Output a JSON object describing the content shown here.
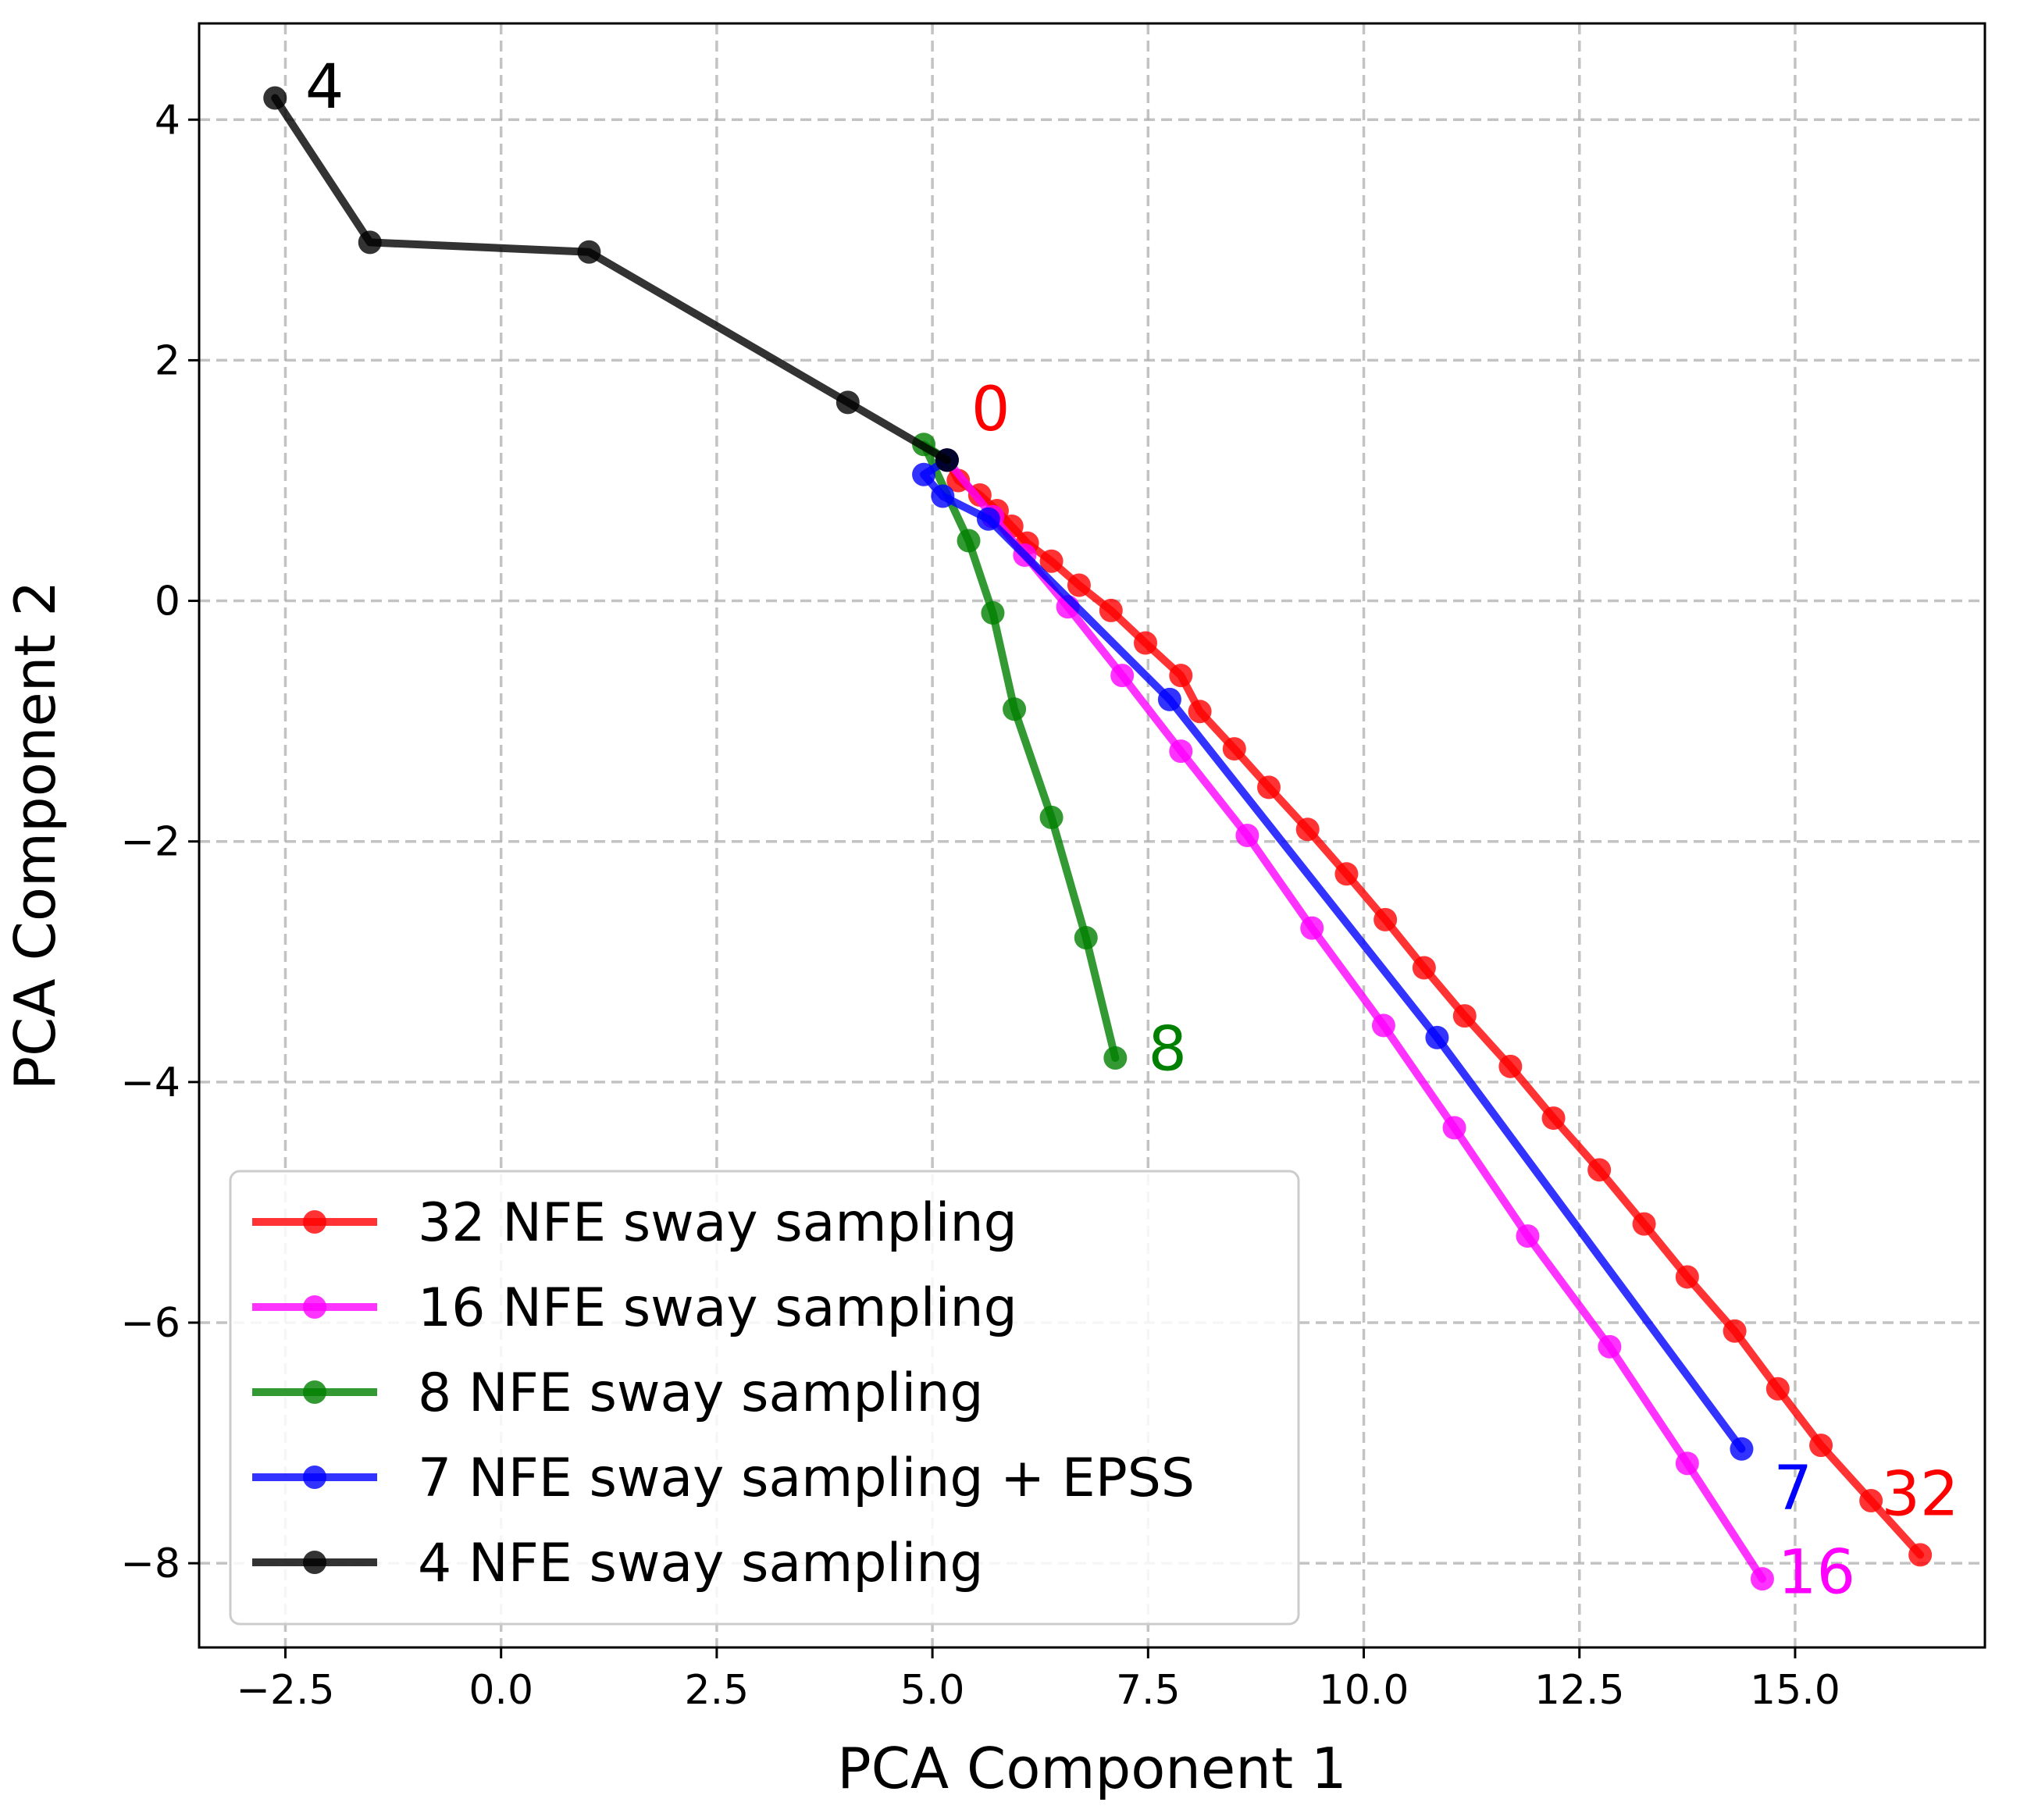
{
  "chart_data": {
    "type": "line",
    "title": "",
    "xlabel": "PCA Component 1",
    "ylabel": "PCA Component 2",
    "xlim": [
      -3.5,
      17.2
    ],
    "ylim": [
      -8.7,
      4.8
    ],
    "xticks": [
      -2.5,
      0.0,
      2.5,
      5.0,
      7.5,
      10.0,
      12.5,
      15.0
    ],
    "xtick_labels": [
      "−2.5",
      "0.0",
      "2.5",
      "5.0",
      "7.5",
      "10.0",
      "12.5",
      "15.0"
    ],
    "yticks": [
      4,
      2,
      0,
      -2,
      -4,
      -6,
      -8
    ],
    "ytick_labels": [
      "4",
      "2",
      "0",
      "−2",
      "−4",
      "−6",
      "−8"
    ],
    "grid": true,
    "legend_position": "bottom-left",
    "series": [
      {
        "name": "32 NFE sway sampling",
        "color": "#ff0000",
        "x": [
          5.17,
          5.3,
          5.55,
          5.75,
          5.92,
          6.1,
          6.38,
          6.7,
          7.07,
          7.47,
          7.88,
          8.1,
          8.5,
          8.9,
          9.35,
          9.8,
          10.25,
          10.7,
          11.17,
          11.7,
          12.2,
          12.73,
          13.25,
          13.75,
          14.3,
          14.8,
          15.3,
          15.88,
          16.45
        ],
        "y": [
          1.17,
          1.0,
          0.88,
          0.75,
          0.62,
          0.48,
          0.33,
          0.13,
          -0.08,
          -0.35,
          -0.62,
          -0.92,
          -1.23,
          -1.55,
          -1.9,
          -2.27,
          -2.65,
          -3.05,
          -3.45,
          -3.87,
          -4.3,
          -4.73,
          -5.18,
          -5.62,
          -6.07,
          -6.55,
          -7.02,
          -7.48,
          -7.93
        ],
        "end_label": "32"
      },
      {
        "name": "16 NFE sway sampling",
        "color": "#ff00ff",
        "x": [
          5.17,
          5.7,
          6.07,
          6.57,
          7.2,
          7.88,
          8.65,
          9.4,
          10.23,
          11.05,
          11.9,
          12.85,
          13.75,
          14.62
        ],
        "y": [
          1.17,
          0.7,
          0.38,
          -0.05,
          -0.62,
          -1.25,
          -1.95,
          -2.72,
          -3.53,
          -4.38,
          -5.28,
          -6.2,
          -7.17,
          -8.13
        ],
        "end_label": "16"
      },
      {
        "name": "8 NFE sway sampling",
        "color": "#008000",
        "x": [
          5.17,
          4.9,
          5.42,
          5.7,
          5.95,
          6.38,
          6.78,
          7.12
        ],
        "y": [
          1.17,
          1.3,
          0.5,
          -0.1,
          -0.9,
          -1.8,
          -2.8,
          -3.8
        ],
        "end_label": "8"
      },
      {
        "name": "7 NFE sway sampling + EPSS",
        "color": "#0000ff",
        "x": [
          5.17,
          4.9,
          5.12,
          5.65,
          7.75,
          10.85,
          14.38
        ],
        "y": [
          1.17,
          1.05,
          0.87,
          0.68,
          -0.82,
          -3.63,
          -7.05
        ],
        "end_label": "7"
      },
      {
        "name": "4 NFE sway sampling",
        "color": "#000000",
        "x": [
          5.17,
          4.02,
          1.02,
          -1.52,
          -2.62
        ],
        "y": [
          1.17,
          1.65,
          2.9,
          2.98,
          4.18
        ],
        "end_label": "4"
      }
    ],
    "annotations": [
      {
        "text": "0",
        "color": "#ff0000",
        "x": 5.45,
        "y": 1.42
      },
      {
        "text": "4",
        "color": "#000000",
        "x": -2.27,
        "y": 4.1
      },
      {
        "text": "8",
        "color": "#008000",
        "x": 7.5,
        "y": -3.9
      },
      {
        "text": "7",
        "color": "#0000ff",
        "x": 14.75,
        "y": -7.55
      },
      {
        "text": "32",
        "color": "#ff0000",
        "x": 16.0,
        "y": -7.6
      },
      {
        "text": "16",
        "color": "#ff00ff",
        "x": 14.8,
        "y": -8.25
      }
    ]
  }
}
